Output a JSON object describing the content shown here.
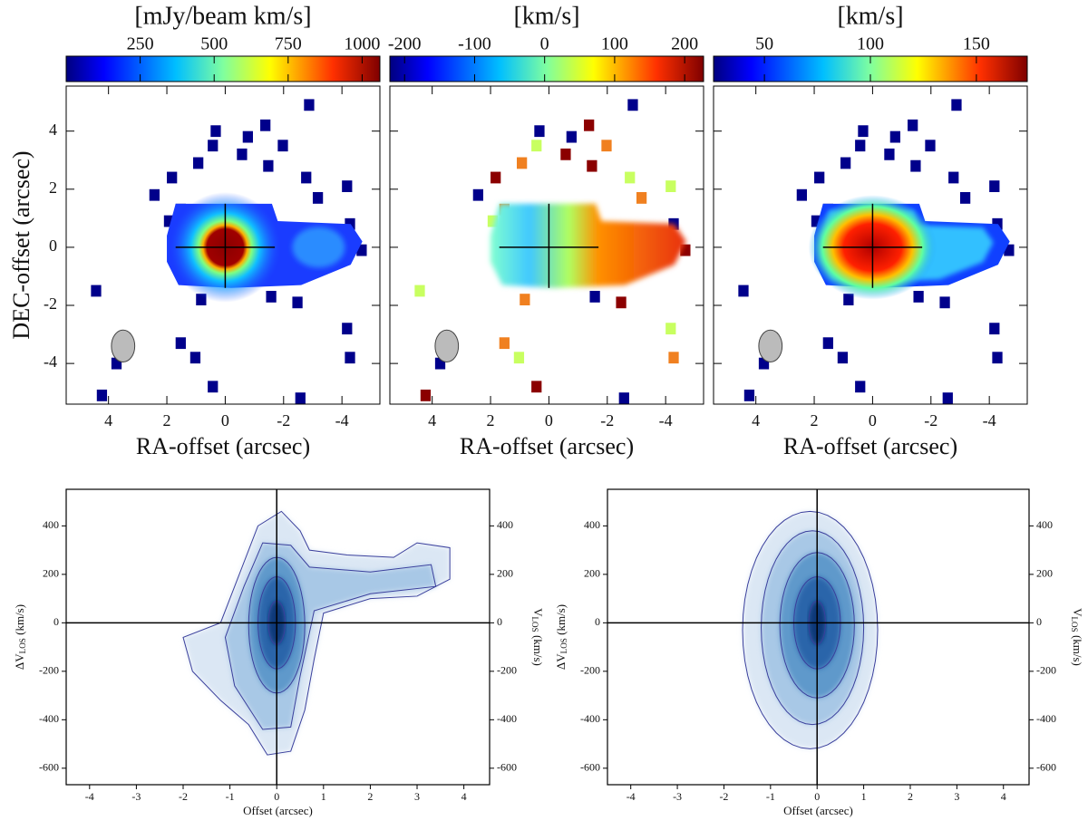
{
  "chart_data": [
    {
      "type": "map",
      "colorbar_label": "[mJy/beam km/s]",
      "colorbar_lim": [
        0,
        1060
      ],
      "colorbar_ticks": [
        250,
        500,
        750,
        1000
      ],
      "xlabel": "RA-offset (arcsec)",
      "ylabel": "DEC-offset (arcsec)",
      "xlim": [
        5.45,
        -5.3
      ],
      "xticks": [
        4,
        2,
        0,
        -2,
        -4
      ],
      "ylim": [
        -5.4,
        5.55
      ],
      "yticks": [
        -4,
        -2,
        0,
        2,
        4
      ]
    },
    {
      "type": "map",
      "colorbar_label": "[km/s]",
      "colorbar_lim": [
        -221,
        227
      ],
      "colorbar_ticks": [
        -200,
        -100,
        0,
        100,
        200
      ],
      "xlabel": "RA-offset (arcsec)",
      "xlim": [
        5.45,
        -5.3
      ],
      "xticks": [
        4,
        2,
        0,
        -2,
        -4
      ],
      "ylim": [
        -5.4,
        5.55
      ],
      "yticks": [
        -4,
        -2,
        0,
        2,
        4
      ]
    },
    {
      "type": "map",
      "colorbar_label": "[km/s]",
      "colorbar_lim": [
        26,
        174
      ],
      "colorbar_ticks": [
        50,
        100,
        150
      ],
      "xlabel": "RA-offset (arcsec)",
      "xlim": [
        5.45,
        -5.3
      ],
      "xticks": [
        4,
        2,
        0,
        -2,
        -4
      ],
      "ylim": [
        -5.4,
        5.55
      ],
      "yticks": [
        -4,
        -2,
        0,
        2,
        4
      ]
    },
    {
      "type": "pv",
      "xlabel": "Offset (arcsec)",
      "ylabel": {
        "prefix": "ΔV",
        "sub": "LOS",
        "suffix": " (km/s)"
      },
      "y2label": {
        "prefix": "V",
        "sub": "LOS",
        "suffix": " (km/s)"
      },
      "xlim": [
        -4.5,
        4.55
      ],
      "xticks": [
        -4,
        -3,
        -2,
        -1,
        0,
        1,
        2,
        3,
        4
      ],
      "ylim": [
        -668,
        551
      ],
      "yticks": [
        -600,
        -400,
        -200,
        0,
        200,
        400
      ],
      "y2lim": [
        -668,
        551
      ],
      "y2ticks": [
        -600,
        -400,
        -200,
        0,
        200,
        400
      ]
    },
    {
      "type": "pv",
      "xlabel": "Offset (arcsec)",
      "ylabel": {
        "prefix": "ΔV",
        "sub": "LOS",
        "suffix": " (km/s)"
      },
      "y2label": {
        "prefix": "V",
        "sub": "LOS",
        "suffix": " (km/s)"
      },
      "xlim": [
        -4.5,
        4.55
      ],
      "xticks": [
        -4,
        -3,
        -2,
        -1,
        0,
        1,
        2,
        3,
        4
      ],
      "ylim": [
        -668,
        551
      ],
      "yticks": [
        -600,
        -400,
        -200,
        0,
        200,
        400
      ],
      "y2lim": [
        -668,
        551
      ],
      "y2ticks": [
        -600,
        -400,
        -200,
        0,
        200,
        400
      ]
    }
  ]
}
